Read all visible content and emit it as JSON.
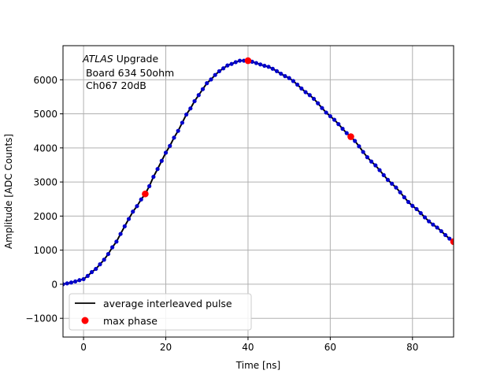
{
  "chart_data": {
    "type": "line",
    "xlabel": "Time [ns]",
    "ylabel": "Amplitude [ADC Counts]",
    "xlim": [
      -5,
      90
    ],
    "ylim": [
      -1550,
      7000
    ],
    "xticks": [
      0,
      20,
      40,
      60,
      80
    ],
    "yticks": [
      -1000,
      0,
      1000,
      2000,
      3000,
      4000,
      5000,
      6000
    ],
    "xtick_labels": [
      "0",
      "20",
      "40",
      "60",
      "80"
    ],
    "ytick_labels": [
      "−1000",
      "0",
      "1000",
      "2000",
      "3000",
      "4000",
      "5000",
      "6000"
    ],
    "grid": true,
    "legend_position": "lower-left",
    "annotation": {
      "line1_italic": "ATLAS",
      "line1_rest": " Upgrade",
      "line2": " Board 634 50ohm",
      "line3": " Ch067 20dB"
    },
    "series": [
      {
        "name": "average interleaved pulse",
        "style": "line-with-markers",
        "line_color": "#000000",
        "marker_color": "#0000cc",
        "x_start": -5,
        "x_end": 90,
        "x_step": 1.0,
        "keypoints": {
          "x": [
            -5,
            -3,
            0,
            3,
            5,
            8,
            10,
            12,
            15,
            18,
            20,
            23,
            25,
            28,
            30,
            33,
            35,
            38,
            40,
            45,
            50,
            55,
            60,
            65,
            70,
            75,
            80,
            85,
            90
          ],
          "y": [
            0,
            50,
            150,
            450,
            720,
            1250,
            1700,
            2130,
            2650,
            3380,
            3860,
            4500,
            4980,
            5550,
            5900,
            6250,
            6420,
            6560,
            6560,
            6380,
            6050,
            5550,
            4930,
            4330,
            3600,
            2950,
            2300,
            1750,
            1250
          ]
        }
      },
      {
        "name": "max phase",
        "style": "markers",
        "color": "#ff0000",
        "x": [
          15,
          40,
          65,
          90
        ],
        "y": [
          2650,
          6560,
          4330,
          1250
        ]
      }
    ]
  },
  "colors": {
    "grid": "#b0b0b0",
    "axes": "#000000"
  }
}
